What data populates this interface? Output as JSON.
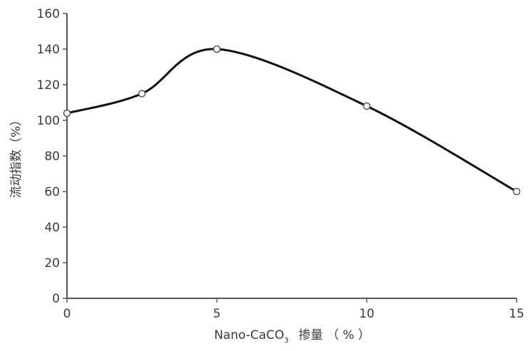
{
  "chart_data": {
    "type": "line",
    "title": "",
    "xlabel": "Nano-CaCO3 掺量 (%)",
    "xlabel_parts": {
      "prefix": "Nano-CaCO",
      "subscript": "3",
      "suffix": "掺量 （ % ）"
    },
    "ylabel": "流动指数（%）",
    "x": [
      0,
      2.5,
      5,
      10,
      15
    ],
    "series": [
      {
        "name": "流动指数",
        "values": [
          104,
          115,
          140,
          108,
          60
        ],
        "color": "#111111",
        "marker": "open-circle",
        "smooth": true
      }
    ],
    "xlim": [
      0,
      15
    ],
    "ylim": [
      0,
      160
    ],
    "xticks": [
      0,
      5,
      10,
      15
    ],
    "yticks": [
      0,
      20,
      40,
      60,
      80,
      100,
      120,
      140,
      160
    ],
    "grid": false,
    "legend": "none"
  }
}
